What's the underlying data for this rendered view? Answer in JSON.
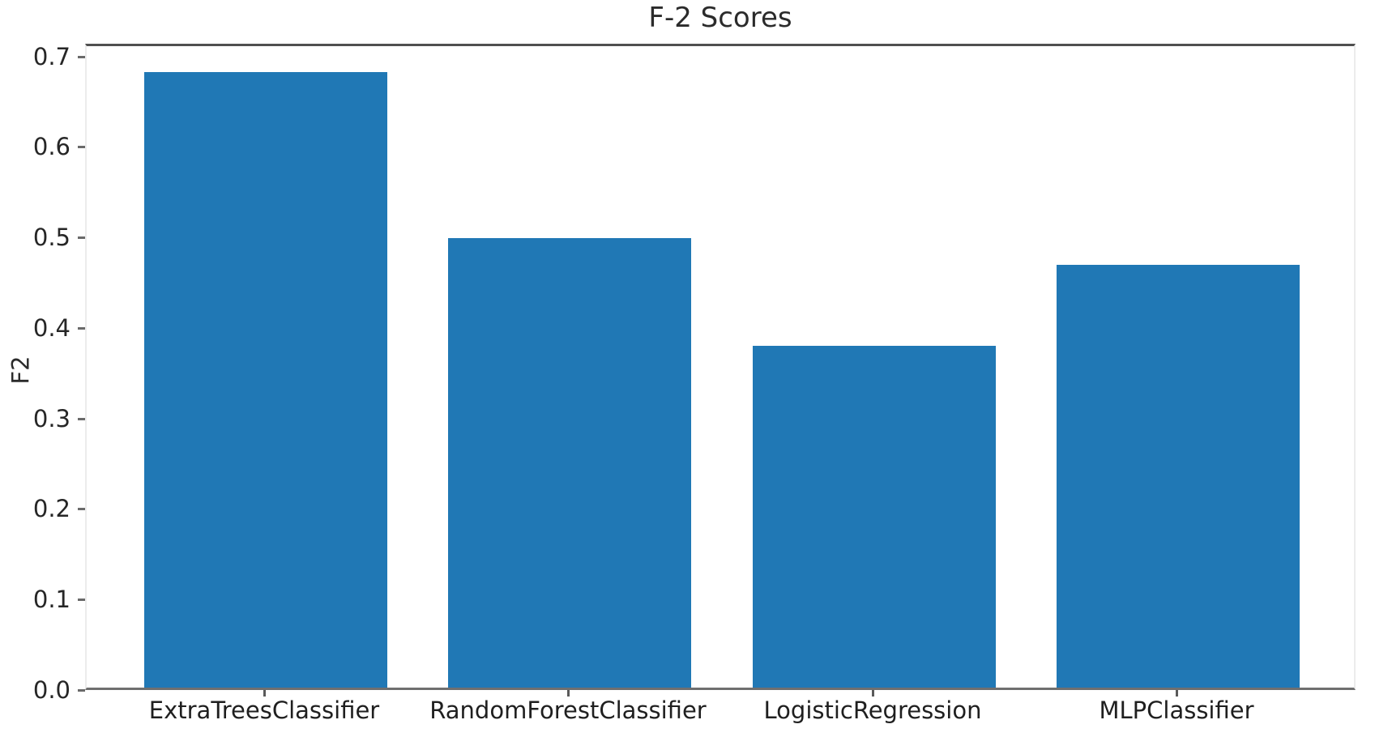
{
  "chart_data": {
    "type": "bar",
    "title": "F-2 Scores",
    "xlabel": "",
    "ylabel": "F2",
    "categories": [
      "ExtraTreesClassifier",
      "RandomForestClassifier",
      "LogisticRegression",
      "MLPClassifier"
    ],
    "values": [
      0.68,
      0.497,
      0.378,
      0.467
    ],
    "ylim": [
      0,
      0.714
    ],
    "yticks": [
      0.0,
      0.1,
      0.2,
      0.3,
      0.4,
      0.5,
      0.6,
      0.7
    ],
    "ytick_labels": [
      "0.0",
      "0.1",
      "0.2",
      "0.3",
      "0.4",
      "0.5",
      "0.6",
      "0.7"
    ],
    "bar_width_fraction": 0.8,
    "grid": false,
    "legend": "none"
  },
  "colors": {
    "bar": "#2078b5",
    "title_text": "#2b2b2b",
    "tick_text": "#262626",
    "spine_top": "#4f4f4f",
    "spine_bottom": "#6f6f6f",
    "spine_side": "#ececec",
    "tick_mark": "#6a6a6a"
  }
}
